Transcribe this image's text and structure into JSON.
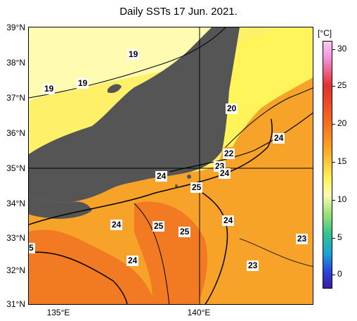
{
  "title": "Daily SSTs 17 Jun. 2021.",
  "lat_labels": [
    "39°N",
    "38°N",
    "37°N",
    "36°N",
    "35°N",
    "34°N",
    "33°N",
    "32°N",
    "31°N"
  ],
  "lon_labels": [
    "135°E",
    "140°E"
  ],
  "colorbar": {
    "unit": "[°C]",
    "labels": [
      "30",
      "25",
      "20",
      "15",
      "10",
      "5",
      "0"
    ]
  },
  "contour_labels": [
    "19",
    "19",
    "19",
    "20",
    "24",
    "22",
    "23",
    "24",
    "24",
    "25",
    "24",
    "25",
    "25",
    "24",
    "23",
    "24",
    "23",
    "5"
  ],
  "colors": {
    "land": "#555555",
    "sea_warm": "#f7a32a",
    "sea_hot": "#f27a22",
    "sea_cool": "#fff06a",
    "sea_cold": "#fffbb0"
  }
}
